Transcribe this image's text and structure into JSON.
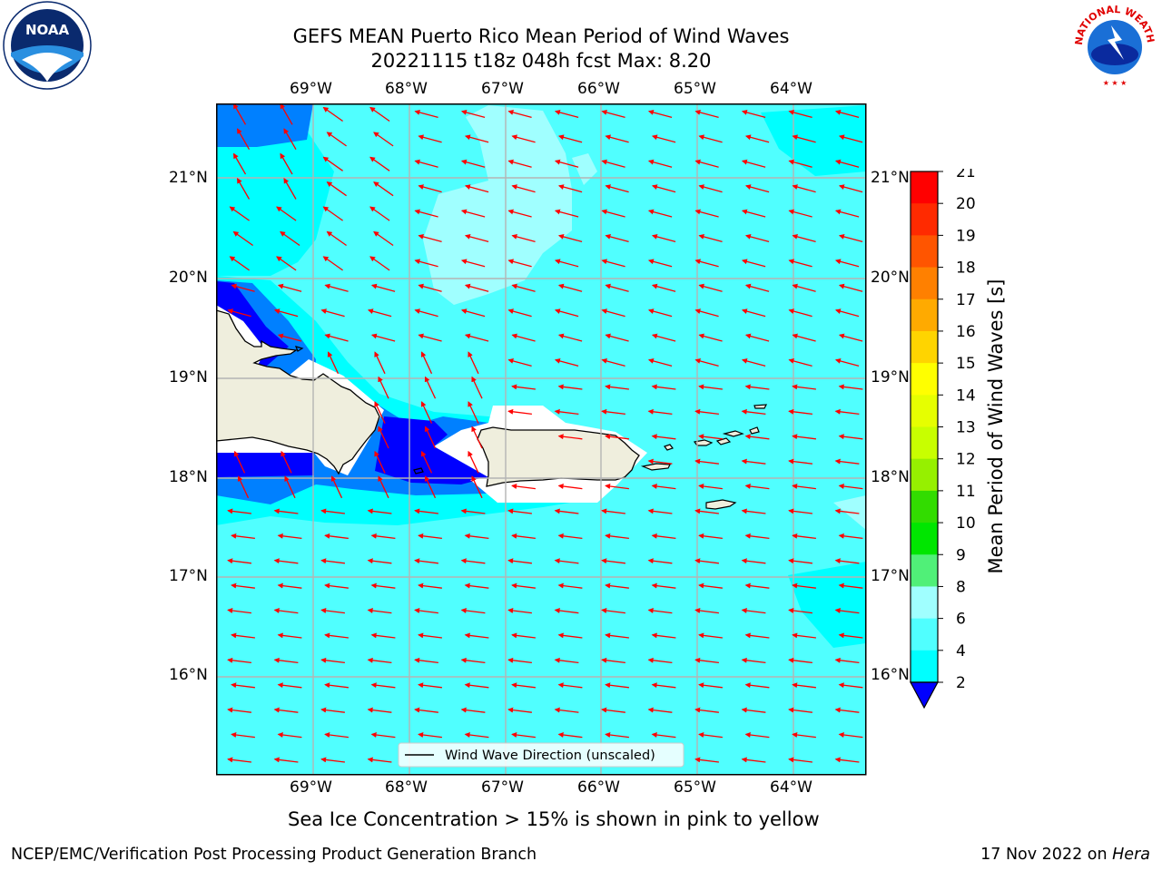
{
  "title_line1": "GEFS MEAN Puerto Rico Mean Period of Wind Waves",
  "title_line2": "20221115 t18z 048h fcst   Max: 8.20",
  "lon_labels": [
    "69°W",
    "68°W",
    "67°W",
    "66°W",
    "65°W",
    "64°W"
  ],
  "lat_labels": [
    "21°N",
    "20°N",
    "19°N",
    "18°N",
    "17°N",
    "16°N"
  ],
  "legend_label": "Wind Wave Direction (unscaled)",
  "colorbar": {
    "label": "Mean Period of Wind Waves [s]",
    "ticks": [
      "21",
      "20",
      "19",
      "18",
      "17",
      "16",
      "15",
      "14",
      "13",
      "12",
      "11",
      "10",
      "9",
      "8",
      "6",
      "4",
      "2"
    ],
    "colors": [
      "#ff0000",
      "#ff2a00",
      "#ff5500",
      "#ff8000",
      "#ffaa00",
      "#ffd400",
      "#ffff00",
      "#e6ff00",
      "#c8ff00",
      "#96f000",
      "#32dc00",
      "#00e600",
      "#50f078",
      "#a0ffff",
      "#50ffff",
      "#00ffff",
      "#0080ff",
      "#0000ff"
    ],
    "under_color": "#0000ff"
  },
  "sea_ice_note": "Sea Ice Concentration > 15% is shown in pink to yellow",
  "footer_left": "NCEP/EMC/Verification Post Processing Product Generation Branch",
  "footer_right_date": "17 Nov 2022 on ",
  "footer_right_host": "Hera",
  "logos": {
    "left": "NOAA",
    "right_text": "NATIONAL WEATHER SERVICE"
  },
  "colors": {
    "land": "#efeedd",
    "ocean": "#50ffff",
    "arrow": "#ff0000",
    "grid": "#b4b4b4"
  }
}
